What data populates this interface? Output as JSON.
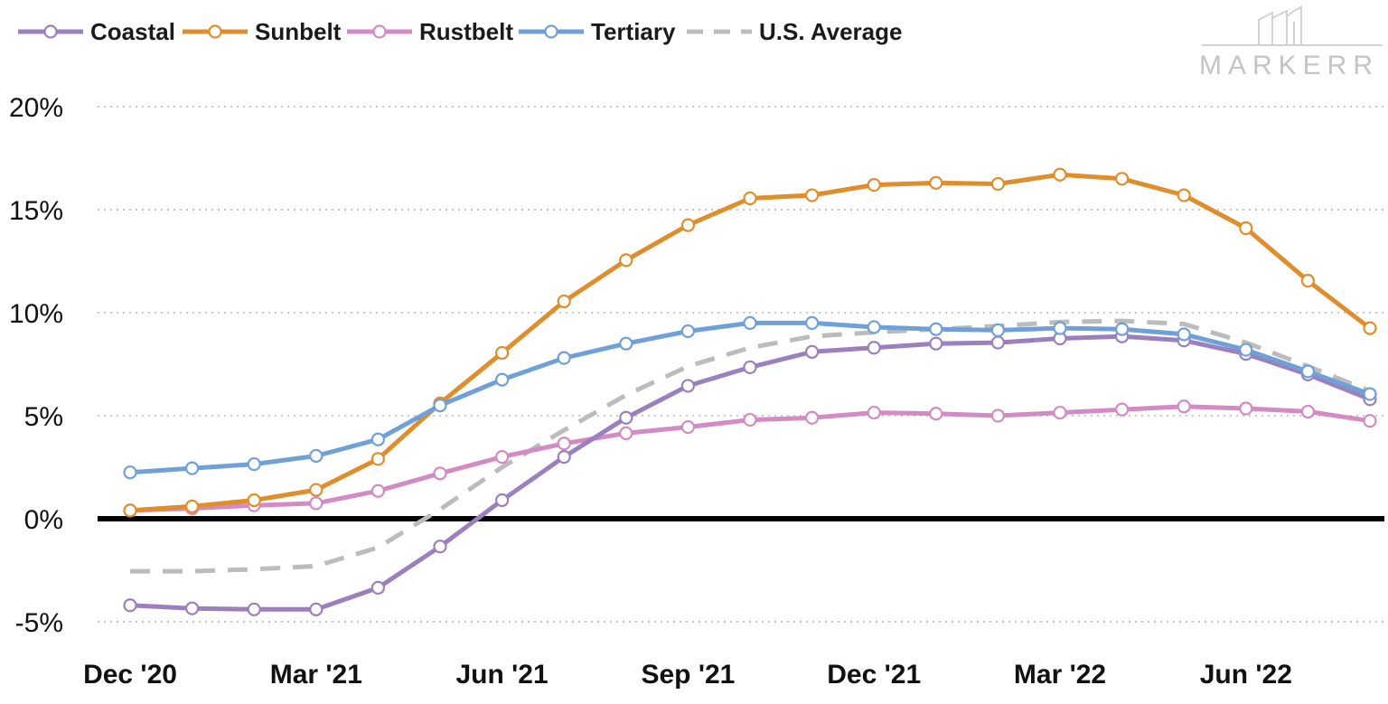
{
  "brand": {
    "text": "MARKERR",
    "logo_icon": "building-skyline-icon",
    "color": "#c4c4c4"
  },
  "chart_data": {
    "type": "line",
    "title": "",
    "xlabel": "",
    "ylabel": "",
    "ylim": [
      -5,
      20
    ],
    "yticks": [
      {
        "value": -5,
        "label": "-5%"
      },
      {
        "value": 0,
        "label": "0%"
      },
      {
        "value": 5,
        "label": "5%"
      },
      {
        "value": 10,
        "label": "10%"
      },
      {
        "value": 15,
        "label": "15%"
      },
      {
        "value": 20,
        "label": "20%"
      }
    ],
    "x": [
      "Dec 2020",
      "Jan 2021",
      "Feb 2021",
      "Mar 2021",
      "Apr 2021",
      "May 2021",
      "Jun 2021",
      "Jul 2021",
      "Aug 2021",
      "Sep 2021",
      "Oct 2021",
      "Nov 2021",
      "Dec 2021",
      "Jan 2022",
      "Feb 2022",
      "Mar 2022",
      "Apr 2022",
      "May 2022",
      "Jun 2022",
      "Jul 2022",
      "Aug 2022"
    ],
    "xticks": [
      {
        "index": 0,
        "label": "Dec '20"
      },
      {
        "index": 3,
        "label": "Mar '21"
      },
      {
        "index": 6,
        "label": "Jun '21"
      },
      {
        "index": 9,
        "label": "Sep '21"
      },
      {
        "index": 12,
        "label": "Dec '21"
      },
      {
        "index": 15,
        "label": "Mar '22"
      },
      {
        "index": 18,
        "label": "Jun '22"
      }
    ],
    "grid": {
      "horizontal": true,
      "style": "dotted",
      "color": "#c8c8c8"
    },
    "zero_line": {
      "value": 0,
      "color": "#000000"
    },
    "legend": {
      "position": "top-left"
    },
    "series": [
      {
        "name": "Coastal",
        "color": "#9b7fbf",
        "style": "solid",
        "markers": true,
        "values": [
          -4.2,
          -4.35,
          -4.4,
          -4.4,
          -3.35,
          -1.35,
          0.9,
          3.0,
          4.9,
          6.45,
          7.35,
          8.1,
          8.3,
          8.5,
          8.55,
          8.75,
          8.85,
          8.65,
          8.0,
          7.0,
          5.8
        ]
      },
      {
        "name": "Sunbelt",
        "color": "#e08e2b",
        "style": "solid",
        "markers": true,
        "values": [
          0.4,
          0.6,
          0.9,
          1.4,
          2.9,
          5.6,
          8.05,
          10.55,
          12.55,
          14.25,
          15.55,
          15.7,
          16.2,
          16.3,
          16.25,
          16.7,
          16.5,
          15.7,
          14.1,
          11.55,
          9.25
        ]
      },
      {
        "name": "Rustbelt",
        "color": "#d48ac4",
        "style": "solid",
        "markers": true,
        "values": [
          0.4,
          0.5,
          0.65,
          0.75,
          1.35,
          2.2,
          3.0,
          3.65,
          4.15,
          4.45,
          4.8,
          4.9,
          5.15,
          5.1,
          5.0,
          5.15,
          5.3,
          5.45,
          5.35,
          5.2,
          4.75
        ]
      },
      {
        "name": "Tertiary",
        "color": "#6fa0d8",
        "style": "solid",
        "markers": true,
        "values": [
          2.25,
          2.45,
          2.65,
          3.05,
          3.85,
          5.5,
          6.75,
          7.8,
          8.5,
          9.1,
          9.5,
          9.5,
          9.3,
          9.2,
          9.15,
          9.25,
          9.2,
          8.95,
          8.2,
          7.15,
          6.05
        ]
      },
      {
        "name": "U.S. Average",
        "color": "#bcbcbc",
        "style": "dashed",
        "markers": false,
        "values": [
          -2.55,
          -2.55,
          -2.45,
          -2.3,
          -1.4,
          0.45,
          2.5,
          4.3,
          6.0,
          7.4,
          8.3,
          8.85,
          9.05,
          9.2,
          9.35,
          9.55,
          9.6,
          9.45,
          8.55,
          7.4,
          6.2
        ]
      }
    ]
  }
}
